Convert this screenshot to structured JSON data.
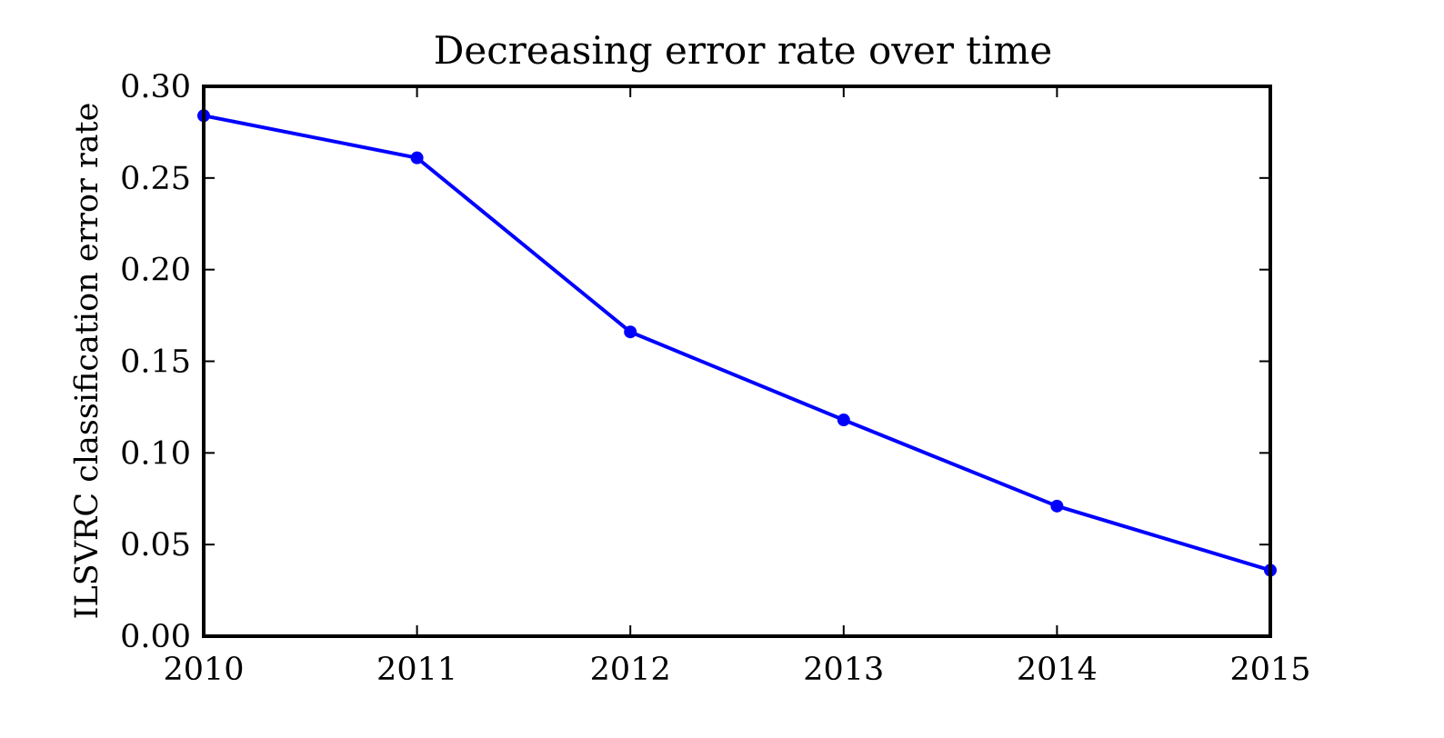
{
  "chart_data": {
    "type": "line",
    "title": "Decreasing error rate over time",
    "xlabel": "",
    "ylabel": "ILSVRC classification error rate",
    "x": [
      2010,
      2011,
      2012,
      2013,
      2014,
      2015
    ],
    "x_ticks": [
      "2010",
      "2011",
      "2012",
      "2013",
      "2014",
      "2015"
    ],
    "y_ticks": [
      "0.00",
      "0.05",
      "0.10",
      "0.15",
      "0.20",
      "0.25",
      "0.30"
    ],
    "xlim": [
      2010,
      2015
    ],
    "ylim": [
      0.0,
      0.3
    ],
    "grid": false,
    "legend": "none",
    "series": [
      {
        "values": [
          0.284,
          0.261,
          0.166,
          0.118,
          0.071,
          0.036
        ],
        "color": "#0000ff",
        "marker": "circle"
      }
    ]
  }
}
